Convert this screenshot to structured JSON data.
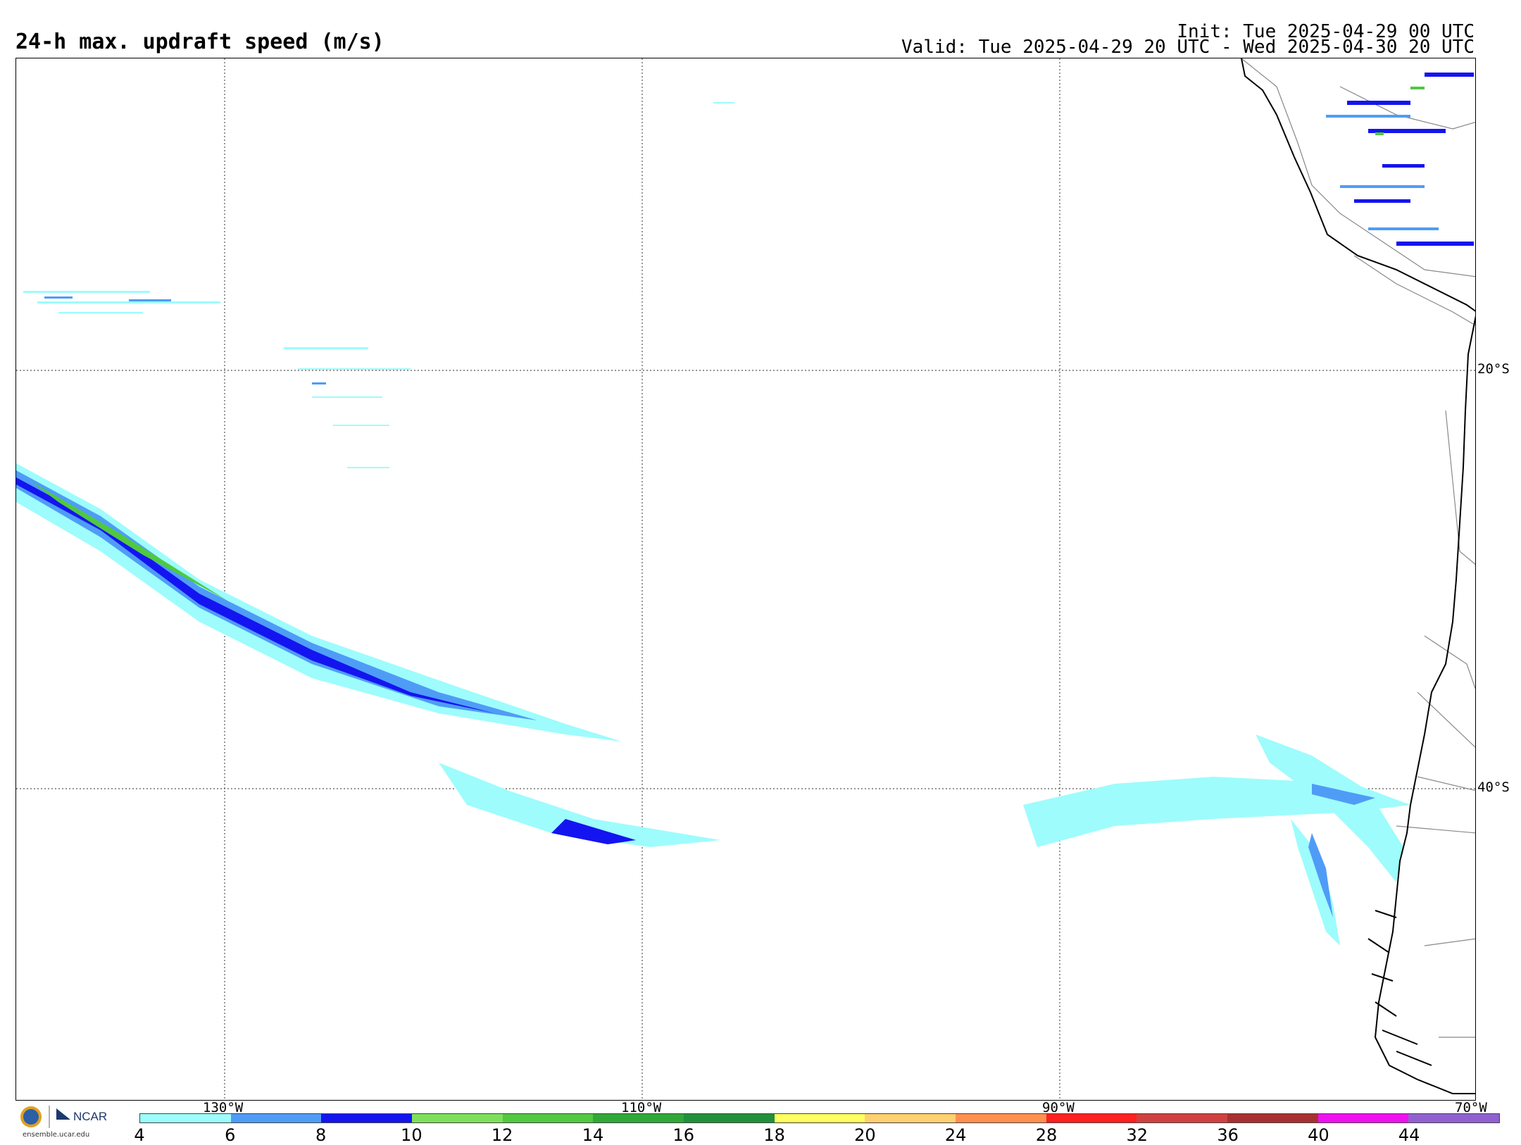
{
  "header": {
    "title": "24-h max. updraft speed (m/s)",
    "init": "Init: Tue 2025-04-29 00 UTC",
    "valid": "Valid: Tue 2025-04-29 20 UTC - Wed 2025-04-30 20 UTC"
  },
  "map": {
    "lat_labels": [
      "20°S",
      "40°S"
    ],
    "lon_labels": [
      "130°W",
      "110°W",
      "90°W",
      "70°W"
    ]
  },
  "colorbar": {
    "ticks": [
      "4",
      "6",
      "8",
      "10",
      "12",
      "14",
      "16",
      "18",
      "20",
      "24",
      "28",
      "32",
      "36",
      "40",
      "44"
    ],
    "colors": [
      "#9efcfc",
      "#4f9cf7",
      "#1414f0",
      "#7ee05a",
      "#50c840",
      "#30a838",
      "#20903a",
      "#ffff60",
      "#ffd070",
      "#ff9050",
      "#ff2020",
      "#d04040",
      "#a83030",
      "#f010f0",
      "#9060d0"
    ]
  },
  "logo": {
    "org": "NCAR",
    "site": "ensemble.ucar.edu"
  }
}
